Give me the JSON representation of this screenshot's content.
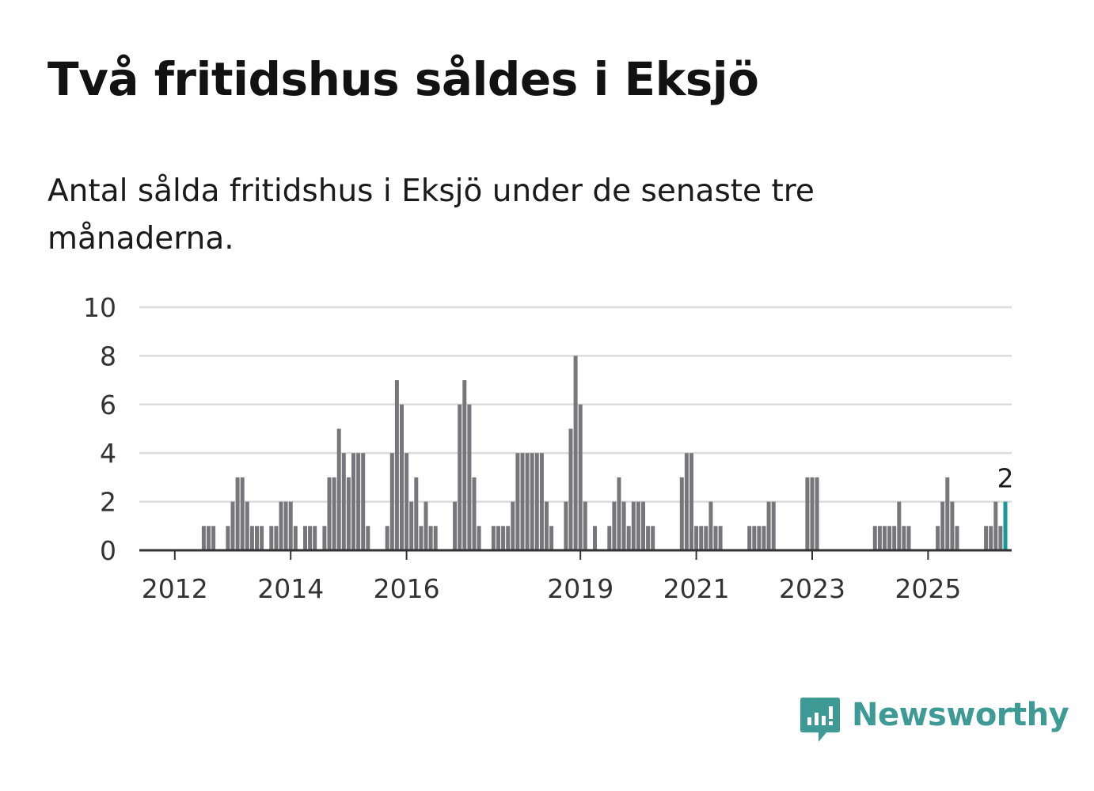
{
  "title": "Två fritidshus såldes i Eksjö",
  "subtitle": "Antal sålda fritidshus i Eksjö under de senaste tre månaderna.",
  "brand": {
    "name": "Newsworthy",
    "color": "#3d9a95",
    "icon": "newsworthy-logo-icon"
  },
  "colors": {
    "bar": "#77767b",
    "highlight": "#1a9a95",
    "grid": "#dcdcdc",
    "axis": "#333333"
  },
  "chart_data": {
    "type": "bar",
    "start_year": 2011,
    "start_month": 10,
    "ylim": [
      0,
      10
    ],
    "yticks": [
      0,
      2,
      4,
      6,
      8,
      10
    ],
    "xticks": [
      "2012",
      "2014",
      "2016",
      "2019",
      "2021",
      "2023",
      "2025"
    ],
    "grid": true,
    "values": [
      0,
      0,
      0,
      0,
      0,
      0,
      0,
      0,
      0,
      1,
      1,
      1,
      0,
      0,
      1,
      2,
      3,
      3,
      2,
      1,
      1,
      1,
      0,
      1,
      1,
      2,
      2,
      2,
      1,
      0,
      1,
      1,
      1,
      0,
      1,
      3,
      3,
      5,
      4,
      3,
      4,
      4,
      4,
      1,
      0,
      0,
      0,
      1,
      4,
      7,
      6,
      4,
      2,
      3,
      1,
      2,
      1,
      1,
      0,
      0,
      0,
      2,
      6,
      7,
      6,
      3,
      1,
      0,
      0,
      1,
      1,
      1,
      1,
      2,
      4,
      4,
      4,
      4,
      4,
      4,
      2,
      1,
      0,
      0,
      2,
      5,
      8,
      6,
      2,
      0,
      1,
      0,
      0,
      1,
      2,
      3,
      2,
      1,
      2,
      2,
      2,
      1,
      1,
      0,
      0,
      0,
      0,
      0,
      3,
      4,
      4,
      1,
      1,
      1,
      2,
      1,
      1,
      0,
      0,
      0,
      0,
      0,
      1,
      1,
      1,
      1,
      2,
      2,
      0,
      0,
      0,
      0,
      0,
      0,
      3,
      3,
      3,
      0,
      0,
      0,
      0,
      0,
      0,
      0,
      0,
      0,
      0,
      0,
      1,
      1,
      1,
      1,
      1,
      2,
      1,
      1,
      0,
      0,
      0,
      0,
      0,
      1,
      2,
      3,
      2,
      1,
      0,
      0,
      0,
      0,
      0,
      1,
      1,
      2,
      1,
      2
    ],
    "highlight_value": 2,
    "highlight_label": "2"
  }
}
